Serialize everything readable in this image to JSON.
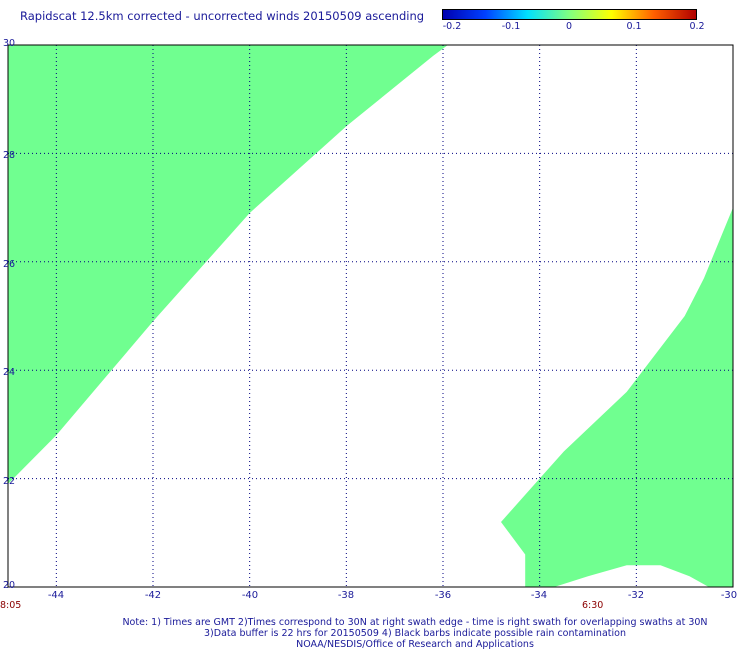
{
  "title": "Rapidscat 12.5km corrected - uncorrected winds 20150509 ascending",
  "colorbar": {
    "ticks": [
      "-0.2",
      "-0.1",
      "0",
      "0.1",
      "0.2"
    ],
    "min": -0.2,
    "max": 0.2,
    "colors": [
      "#0000b0",
      "#0040ff",
      "#00e0ff",
      "#80ff80",
      "#ffff00",
      "#ff6000",
      "#b00000"
    ]
  },
  "chart_data": {
    "type": "heatmap",
    "fill_color": "#70ff90",
    "xlim": [
      -45,
      -30
    ],
    "ylim": [
      20,
      30
    ],
    "x_ticks": [
      "-44",
      "-42",
      "-40",
      "-38",
      "-36",
      "-34",
      "-32",
      "-30"
    ],
    "y_ticks": [
      "30",
      "28",
      "26",
      "24",
      "22",
      "20"
    ],
    "swaths": [
      {
        "polygon": [
          [
            -45,
            30
          ],
          [
            -35.9,
            30
          ],
          [
            -36.2,
            29.8
          ],
          [
            -38.0,
            28.5
          ],
          [
            -40.0,
            26.9
          ],
          [
            -42.0,
            24.9
          ],
          [
            -44.0,
            22.8
          ],
          [
            -45,
            21.9
          ]
        ]
      },
      {
        "polygon": [
          [
            -30,
            27.0
          ],
          [
            -30,
            20.0
          ],
          [
            -30.5,
            20.0
          ],
          [
            -30.9,
            20.2
          ],
          [
            -31.5,
            20.4
          ],
          [
            -32.2,
            20.4
          ],
          [
            -33.0,
            20.2
          ],
          [
            -33.7,
            20.0
          ],
          [
            -34.3,
            20.0
          ],
          [
            -34.3,
            20.6
          ],
          [
            -34.8,
            21.2
          ],
          [
            -34.2,
            21.8
          ],
          [
            -33.5,
            22.5
          ],
          [
            -32.2,
            23.6
          ],
          [
            -31.0,
            25.0
          ],
          [
            -30.6,
            25.7
          ]
        ]
      }
    ],
    "time_labels": [
      "8:05",
      "6:30"
    ],
    "time_label_lon": [
      -45,
      -32.8
    ]
  },
  "notes": [
    "Note: 1) Times are GMT 2)Times correspond to 30N at right swath edge - time is right swath for overlapping swaths at 30N",
    "3)Data buffer is 22 hrs for 20150509 4) Black barbs indicate possible rain contamination",
    "NOAA/NESDIS/Office of Research and Applications"
  ]
}
